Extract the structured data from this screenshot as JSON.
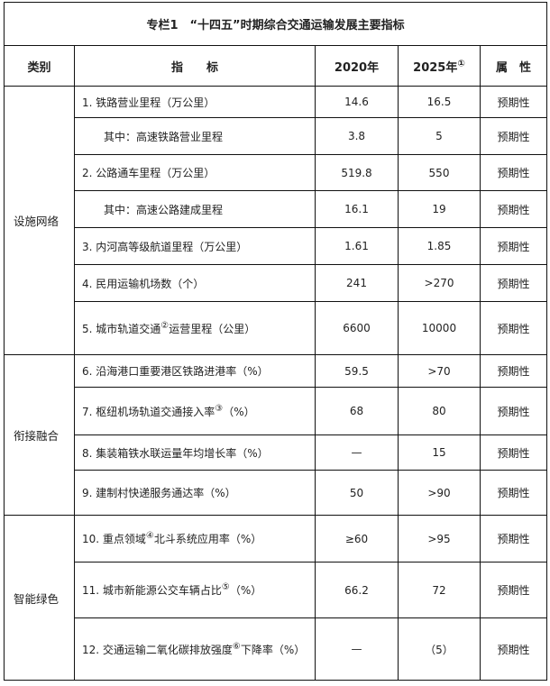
{
  "title": "专栏1　“十四五”时期综合交通运输发展主要指标",
  "headers": {
    "category": "类别",
    "indicator": "指　　标",
    "y2020": "2020年",
    "y2025": "2025年",
    "y2025_note": "①",
    "attribute": "属　性"
  },
  "groups": [
    {
      "name": "设施网络",
      "rows": [
        {
          "indicator": "1. 铁路营业里程（万公里）",
          "y2020": "14.6",
          "y2025": "16.5",
          "attr": "预期性"
        },
        {
          "indicator": "其中：高速铁路营业里程",
          "y2020": "3.8",
          "y2025": "5",
          "attr": "预期性"
        },
        {
          "indicator": "2. 公路通车里程（万公里）",
          "y2020": "519.8",
          "y2025": "550",
          "attr": "预期性"
        },
        {
          "indicator": "其中：高速公路建成里程",
          "y2020": "16.1",
          "y2025": "19",
          "attr": "预期性"
        },
        {
          "indicator": "3. 内河高等级航道里程（万公里）",
          "y2020": "1.61",
          "y2025": "1.85",
          "attr": "预期性"
        },
        {
          "indicator": "4. 民用运输机场数（个）",
          "y2020": "241",
          "y2025": ">270",
          "attr": "预期性"
        },
        {
          "indicator": "5. 城市轨道交通",
          "note": "②",
          "indicator_tail": "运营里程（公里）",
          "y2020": "6600",
          "y2025": "10000",
          "attr": "预期性"
        }
      ]
    },
    {
      "name": "衔接融合",
      "rows": [
        {
          "indicator": "6. 沿海港口重要港区铁路进港率（%）",
          "y2020": "59.5",
          "y2025": ">70",
          "attr": "预期性"
        },
        {
          "indicator": "7. 枢纽机场轨道交通接入率",
          "note": "③",
          "indicator_tail": "（%）",
          "y2020": "68",
          "y2025": "80",
          "attr": "预期性"
        },
        {
          "indicator": "8. 集装箱铁水联运量年均增长率（%）",
          "y2020": "—",
          "y2025": "15",
          "attr": "预期性"
        },
        {
          "indicator": "9. 建制村快递服务通达率（%）",
          "y2020": "50",
          "y2025": ">90",
          "attr": "预期性"
        }
      ]
    },
    {
      "name": "智能绿色",
      "rows": [
        {
          "indicator": "10. 重点领域",
          "note": "④",
          "indicator_tail": "北斗系统应用率（%）",
          "y2020": "≥60",
          "y2025": ">95",
          "attr": "预期性"
        },
        {
          "indicator": "11. 城市新能源公交车辆占比",
          "note": "⑤",
          "indicator_tail": "（%）",
          "y2020": "66.2",
          "y2025": "72",
          "attr": "预期性"
        },
        {
          "indicator": "12. 交通运输二氧化碳排放强度",
          "note": "⑥",
          "indicator_tail": "下降率（%）",
          "y2020": "—",
          "y2025": "（5）",
          "attr": "预期性"
        }
      ]
    }
  ]
}
